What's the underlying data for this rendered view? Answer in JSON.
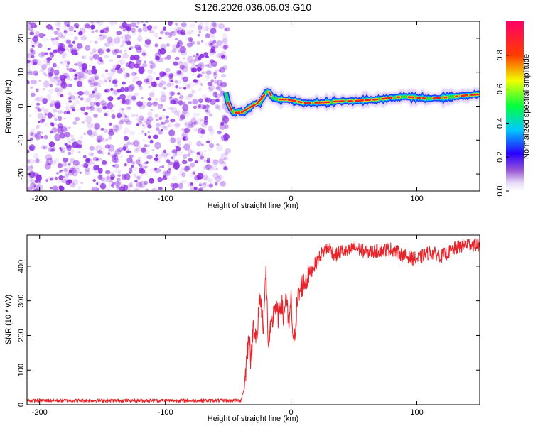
{
  "figure_title": "S126.2026.036.06.03.G10",
  "colors": {
    "snr_line": "#e8242a",
    "background_scatter": "#8a2be2",
    "track_core": "#e8242a",
    "track_mid": "#f0e020",
    "track_outer": "#1a3cff",
    "track_halo": "#c7a8f0"
  },
  "chart_data": [
    {
      "type": "heatmap",
      "name": "spectrogram",
      "title": "S126.2026.036.06.03.G10",
      "xlabel": "Height of straight line (km)",
      "ylabel": "Frequency (Hz)",
      "xlim": [
        -210,
        150
      ],
      "ylim": [
        -25,
        25
      ],
      "x_ticks": [
        -200,
        -100,
        0,
        100
      ],
      "x_tick_labels": [
        "-200",
        "-100",
        "0",
        "100"
      ],
      "y_ticks": [
        -20,
        -10,
        0,
        10,
        20
      ],
      "y_tick_labels": [
        "-20",
        "-10",
        "0",
        "10",
        "20"
      ],
      "noise_region_x": [
        -210,
        -50
      ],
      "track": {
        "x": [
          -52,
          -50,
          -48,
          -45,
          -42,
          -38,
          -35,
          -30,
          -25,
          -20,
          -18,
          -15,
          -10,
          -5,
          0,
          10,
          20,
          30,
          40,
          50,
          60,
          70,
          80,
          90,
          100,
          110,
          120,
          130,
          140,
          150
        ],
        "freq_hz": [
          4,
          1,
          -1,
          -2,
          -1.5,
          -2,
          -1,
          0.5,
          1,
          4,
          4.5,
          2.5,
          2,
          2,
          1.8,
          1,
          1,
          1.2,
          1.5,
          1.5,
          1.8,
          2,
          2.5,
          2.8,
          2.5,
          2.2,
          2.5,
          2.8,
          3.2,
          3.5
        ]
      },
      "colorbar": {
        "label": "Normalized spectral amplitude",
        "range": [
          0,
          1
        ],
        "ticks": [
          0.0,
          0.2,
          0.4,
          0.6,
          0.8
        ],
        "tick_labels": [
          "0.0",
          "0.2",
          "0.4",
          "0.6",
          "0.8"
        ]
      }
    },
    {
      "type": "line",
      "name": "snr",
      "xlabel": "Height of straight line (km)",
      "ylabel": "SNR (10 * v/v)",
      "xlim": [
        -210,
        150
      ],
      "ylim": [
        0,
        490
      ],
      "x_ticks": [
        -200,
        -100,
        0,
        100
      ],
      "x_tick_labels": [
        "-200",
        "-100",
        "0",
        "100"
      ],
      "y_ticks": [
        0,
        100,
        200,
        300,
        400
      ],
      "y_tick_labels": [
        "0",
        "100",
        "200",
        "300",
        "400"
      ],
      "series": [
        {
          "name": "SNR",
          "x": [
            -210,
            -150,
            -100,
            -60,
            -40,
            -37,
            -35,
            -33,
            -32,
            -30,
            -27,
            -25,
            -22,
            -20,
            -18,
            -17,
            -15,
            -13,
            -10,
            -8,
            -6,
            -4,
            -2,
            0,
            2,
            5,
            8,
            12,
            18,
            25,
            30,
            35,
            40,
            45,
            50,
            60,
            70,
            80,
            90,
            100,
            110,
            120,
            130,
            140,
            150
          ],
          "values": [
            12,
            12,
            12,
            12,
            12,
            50,
            150,
            210,
            110,
            240,
            180,
            320,
            230,
            380,
            170,
            200,
            230,
            290,
            250,
            300,
            250,
            320,
            220,
            300,
            170,
            300,
            340,
            360,
            400,
            440,
            455,
            430,
            445,
            440,
            455,
            440,
            445,
            450,
            430,
            420,
            440,
            430,
            450,
            465,
            460
          ]
        }
      ]
    }
  ]
}
